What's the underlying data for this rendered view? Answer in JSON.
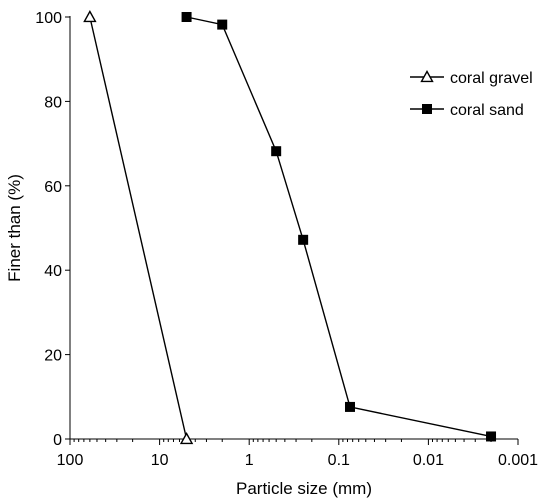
{
  "chart_data": {
    "type": "line",
    "xlabel": "Particle size (mm)",
    "ylabel": "Finer than (%)",
    "x_scale": "log",
    "x_reversed": true,
    "xlim": [
      100,
      0.001
    ],
    "ylim": [
      0,
      100
    ],
    "x_ticks": [
      {
        "value": 100,
        "label": "100"
      },
      {
        "value": 10,
        "label": "10"
      },
      {
        "value": 1,
        "label": "1"
      },
      {
        "value": 0.1,
        "label": "0.1"
      },
      {
        "value": 0.01,
        "label": "0.01"
      },
      {
        "value": 0.001,
        "label": "0.001"
      }
    ],
    "y_ticks": [
      {
        "value": 0,
        "label": "0"
      },
      {
        "value": 20,
        "label": "20"
      },
      {
        "value": 40,
        "label": "40"
      },
      {
        "value": 60,
        "label": "60"
      },
      {
        "value": 80,
        "label": "80"
      },
      {
        "value": 100,
        "label": "100"
      }
    ],
    "grid": false,
    "legend_position": "top-right",
    "series": [
      {
        "name": "coral gravel",
        "marker": "open-triangle",
        "x": [
          60,
          5
        ],
        "y": [
          100,
          0
        ]
      },
      {
        "name": "coral sand",
        "marker": "filled-square",
        "x": [
          5,
          2,
          0.5,
          0.25,
          0.075,
          0.002
        ],
        "y": [
          100,
          98.2,
          68.2,
          47.2,
          7.6,
          0.6
        ]
      }
    ]
  }
}
